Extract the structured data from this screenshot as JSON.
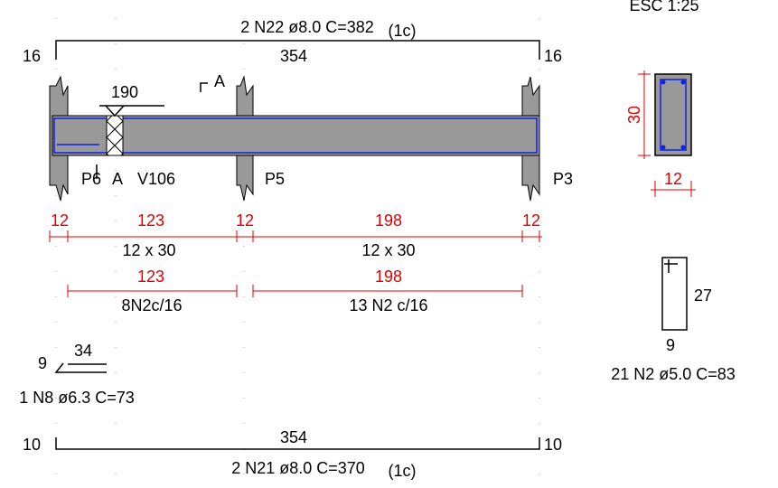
{
  "header": {
    "scale": "ESC 1:25"
  },
  "top_bar": {
    "label": "2 N22 ø8.0 C=382",
    "layer": "(1c)",
    "left_hook": "16",
    "length": "354",
    "right_hook": "16"
  },
  "elevation": {
    "hanger": "190",
    "section_mark": "A",
    "supports": [
      "P6",
      "A",
      "V106",
      "P5",
      "P3"
    ]
  },
  "spans": {
    "dims": [
      "12",
      "123",
      "12",
      "198",
      "12"
    ],
    "sections": [
      "12 x 30",
      "12 x 30"
    ]
  },
  "stirrups": {
    "dims": [
      "123",
      "198"
    ],
    "labels": [
      "8N2c/16",
      "13 N2 c/16"
    ]
  },
  "extra_bar": {
    "hook": "9",
    "length": "34",
    "label": "1 N8 ø6.3 C=73"
  },
  "bottom_bar": {
    "label": "2 N21 ø8.0 C=370",
    "layer": "(1c)",
    "left_hook": "10",
    "length": "354",
    "right_hook": "10"
  },
  "cross_section": {
    "height": "30",
    "width": "12"
  },
  "stirrup_detail": {
    "height": "27",
    "width": "9",
    "label": "21 N2 ø5.0 C=83"
  }
}
